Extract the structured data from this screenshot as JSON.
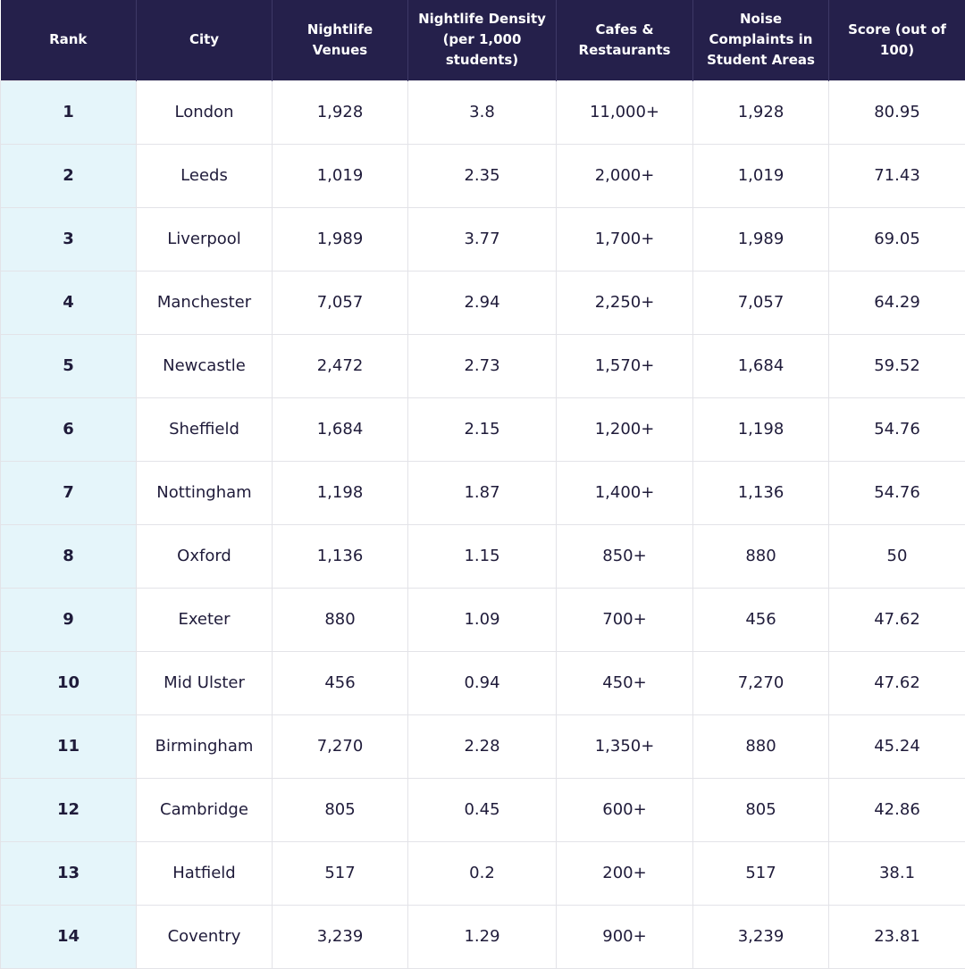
{
  "table": {
    "headers": [
      "Rank",
      "City",
      "Nightlife Venues",
      "Nightlife Density (per 1,000 students)",
      "Cafes & Restaurants",
      "Noise Complaints in Student Areas",
      "Score (out of 100)"
    ],
    "rows": [
      [
        "1",
        "London",
        "1,928",
        "3.8",
        "11,000+",
        "1,928",
        "80.95"
      ],
      [
        "2",
        "Leeds",
        "1,019",
        "2.35",
        "2,000+",
        "1,019",
        "71.43"
      ],
      [
        "3",
        "Liverpool",
        "1,989",
        "3.77",
        "1,700+",
        "1,989",
        "69.05"
      ],
      [
        "4",
        "Manchester",
        "7,057",
        "2.94",
        "2,250+",
        "7,057",
        "64.29"
      ],
      [
        "5",
        "Newcastle",
        "2,472",
        "2.73",
        "1,570+",
        "1,684",
        "59.52"
      ],
      [
        "6",
        "Sheffield",
        "1,684",
        "2.15",
        "1,200+",
        "1,198",
        "54.76"
      ],
      [
        "7",
        "Nottingham",
        "1,198",
        "1.87",
        "1,400+",
        "1,136",
        "54.76"
      ],
      [
        "8",
        "Oxford",
        "1,136",
        "1.15",
        "850+",
        "880",
        "50"
      ],
      [
        "9",
        "Exeter",
        "880",
        "1.09",
        "700+",
        "456",
        "47.62"
      ],
      [
        "10",
        "Mid Ulster",
        "456",
        "0.94",
        "450+",
        "7,270",
        "47.62"
      ],
      [
        "11",
        "Birmingham",
        "7,270",
        "2.28",
        "1,350+",
        "880",
        "45.24"
      ],
      [
        "12",
        "Cambridge",
        "805",
        "0.45",
        "600+",
        "805",
        "42.86"
      ],
      [
        "13",
        "Hatfield",
        "517",
        "0.2",
        "200+",
        "517",
        "38.1"
      ],
      [
        "14",
        "Coventry",
        "3,239",
        "1.29",
        "900+",
        "3,239",
        "23.81"
      ]
    ]
  }
}
